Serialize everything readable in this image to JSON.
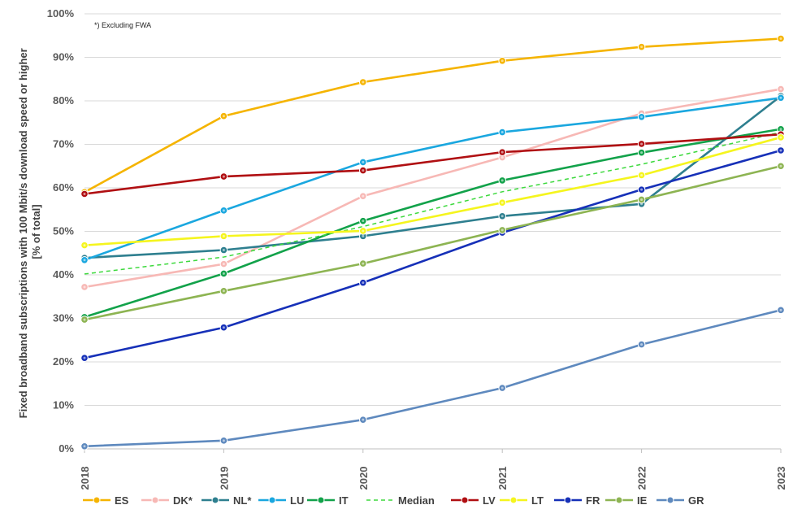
{
  "chart_data": {
    "type": "line",
    "ylabel_lines": [
      "Fixed broadband subscriptions with 100 Mbit/s download speed or higher",
      "[% of total]"
    ],
    "note": "*) Excluding FWA",
    "categories": [
      "2018",
      "2019",
      "2020",
      "2021",
      "2022",
      "2023"
    ],
    "y_ticks": [
      "0%",
      "10%",
      "20%",
      "30%",
      "40%",
      "50%",
      "60%",
      "70%",
      "80%",
      "90%",
      "100%"
    ],
    "ylim": [
      0,
      100
    ],
    "grid": true,
    "legend_position": "bottom",
    "series": [
      {
        "name": "ES",
        "color": "#F5B400",
        "dashed": false,
        "values": [
          59,
          76.5,
          84.3,
          89.2,
          92.4,
          94.3
        ]
      },
      {
        "name": "DK*",
        "color": "#F7B8B5",
        "dashed": false,
        "values": [
          37.2,
          42.5,
          58.1,
          67,
          77.1,
          82.7
        ]
      },
      {
        "name": "NL*",
        "color": "#2E7F8F",
        "dashed": false,
        "values": [
          43.9,
          45.7,
          48.9,
          53.5,
          56.3,
          81.1
        ]
      },
      {
        "name": "LU",
        "color": "#1AA7DF",
        "dashed": false,
        "values": [
          43.4,
          54.8,
          65.9,
          72.8,
          76.3,
          80.7
        ]
      },
      {
        "name": "IT",
        "color": "#12A24A",
        "dashed": false,
        "values": [
          30.3,
          40.3,
          52.4,
          61.7,
          68.1,
          73.5
        ]
      },
      {
        "name": "Median",
        "color": "#3DD93D",
        "dashed": true,
        "values": [
          40.2,
          44.1,
          51.1,
          59.1,
          65.4,
          72.8
        ]
      },
      {
        "name": "LV",
        "color": "#B00F12",
        "dashed": false,
        "values": [
          58.6,
          62.6,
          64,
          68.2,
          70.1,
          72.3
        ]
      },
      {
        "name": "LT",
        "color": "#F5F51E",
        "dashed": false,
        "values": [
          46.8,
          48.9,
          50.1,
          56.6,
          62.9,
          71.6
        ]
      },
      {
        "name": "FR",
        "color": "#1630B8",
        "dashed": false,
        "values": [
          20.9,
          27.9,
          38.2,
          49.7,
          59.6,
          68.6
        ]
      },
      {
        "name": "IE",
        "color": "#8DB452",
        "dashed": false,
        "values": [
          29.7,
          36.3,
          42.6,
          50.3,
          57.3,
          65
        ]
      },
      {
        "name": "GR",
        "color": "#5E89BE",
        "dashed": false,
        "values": [
          0.6,
          1.9,
          6.7,
          14,
          24,
          31.9
        ]
      }
    ]
  }
}
